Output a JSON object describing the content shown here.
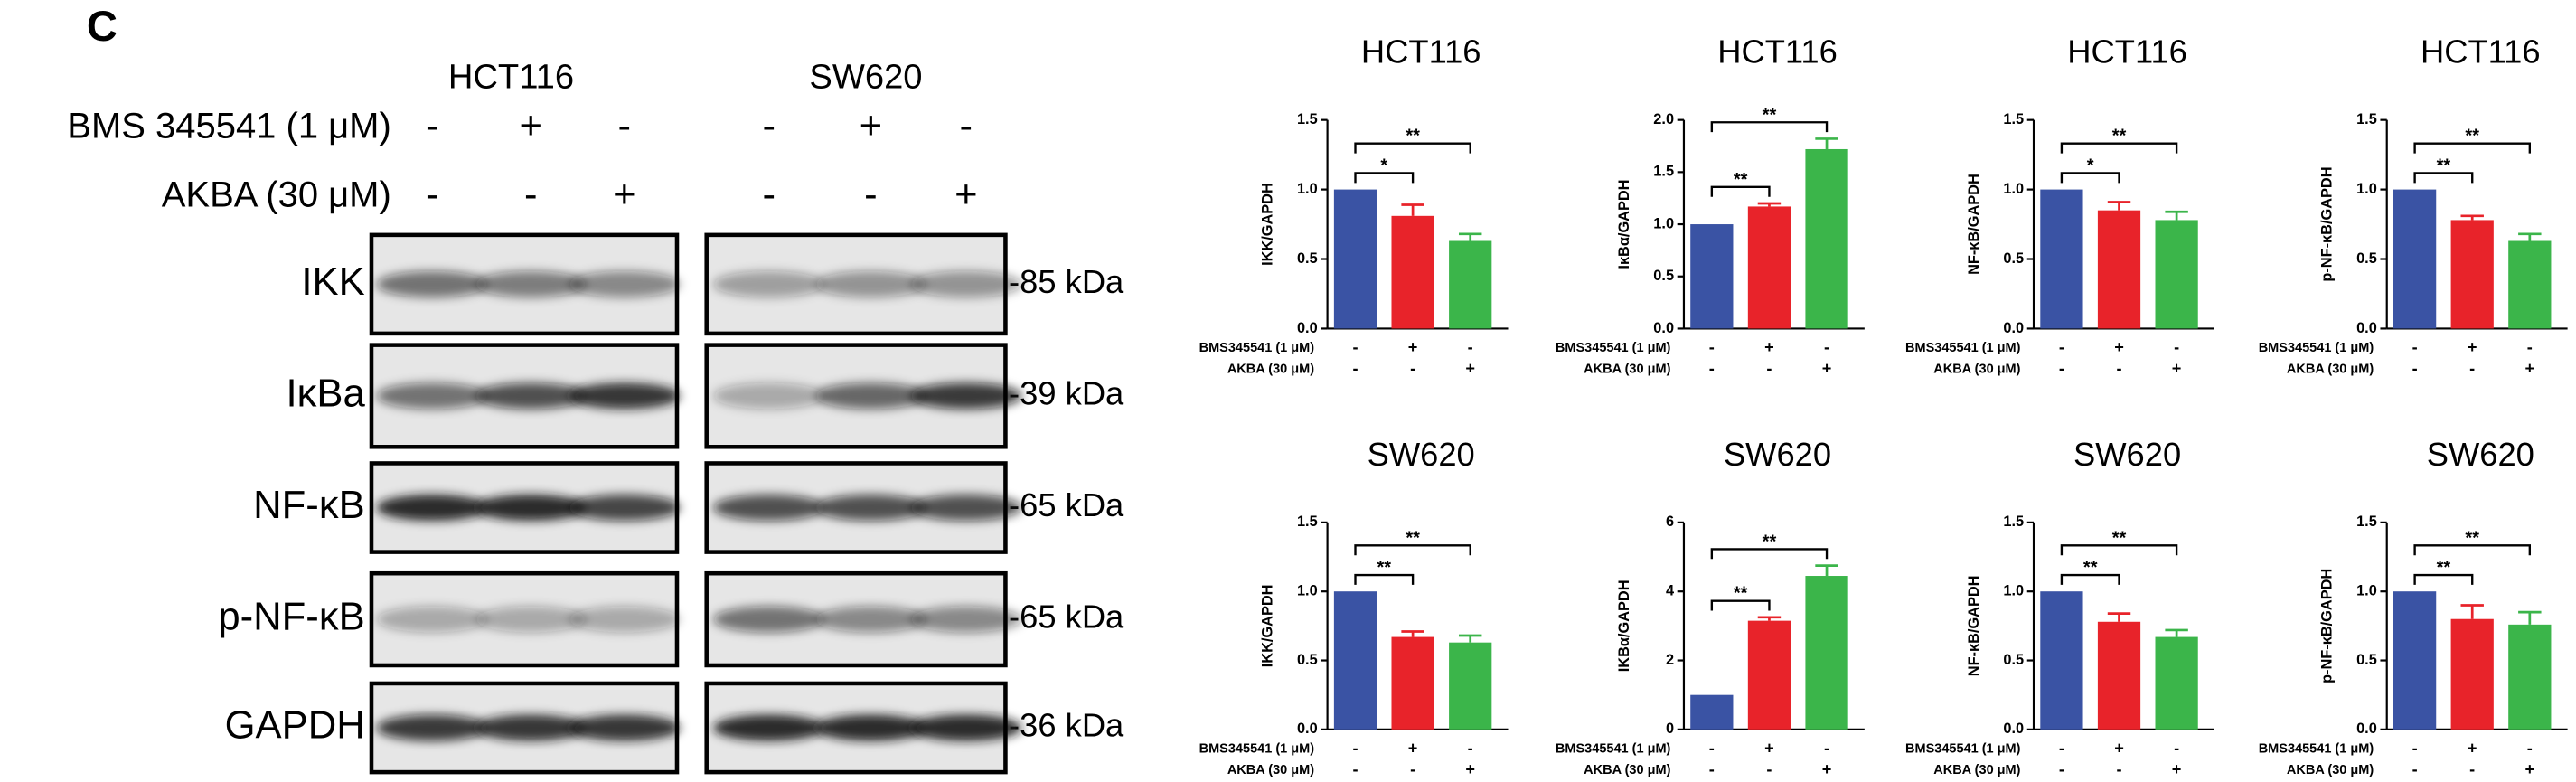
{
  "blot": {
    "panel_label": "C",
    "cell_lines": [
      "HCT116",
      "SW620"
    ],
    "treatments": [
      {
        "name": "BMS 345541 (1 μM)",
        "signs": [
          "-",
          "+",
          "-",
          "-",
          "+",
          "-"
        ]
      },
      {
        "name": "AKBA (30 μM)",
        "signs": [
          "-",
          "-",
          "+",
          "-",
          "-",
          "+"
        ]
      }
    ],
    "proteins": [
      {
        "name": "IKK",
        "size": "-85 kDa"
      },
      {
        "name": "IκBa",
        "size": "-39 kDa"
      },
      {
        "name": "NF-κB",
        "size": "-65 kDa"
      },
      {
        "name": "p-NF-κB",
        "size": "-65 kDa"
      },
      {
        "name": "GAPDH",
        "size": "-36 kDa"
      }
    ]
  },
  "chart_data": [
    {
      "type": "bar",
      "title": "HCT116",
      "ylabel": "IKK/GAPDH",
      "values": [
        1.0,
        0.81,
        0.63
      ],
      "errors": [
        0,
        0.08,
        0.05
      ],
      "colors": [
        "#3a53a4",
        "#e8232a",
        "#3bb54a"
      ],
      "significance": [
        "*",
        "**"
      ],
      "ylim": [
        0,
        1.5
      ],
      "yticks": [
        {
          "value": 0,
          "label": "0.0"
        },
        {
          "value": 0.5,
          "label": "0.5"
        },
        {
          "value": 1,
          "label": "1.0"
        },
        {
          "value": 1.5,
          "label": "1.5"
        }
      ],
      "treatments": [
        {
          "name": "BMS345541 (1 μM)",
          "signs": [
            "-",
            "+",
            "-"
          ]
        },
        {
          "name": "AKBA (30 μM)",
          "signs": [
            "-",
            "-",
            "+"
          ]
        }
      ]
    },
    {
      "type": "bar",
      "title": "HCT116",
      "ylabel": "IκBα/GAPDH",
      "values": [
        1.0,
        1.17,
        1.72
      ],
      "errors": [
        0,
        0.03,
        0.1
      ],
      "colors": [
        "#3a53a4",
        "#e8232a",
        "#3bb54a"
      ],
      "significance": [
        "**",
        "**"
      ],
      "ylim": [
        0,
        2
      ],
      "yticks": [
        {
          "value": 0,
          "label": "0.0"
        },
        {
          "value": 0.5,
          "label": "0.5"
        },
        {
          "value": 1,
          "label": "1.0"
        },
        {
          "value": 1.5,
          "label": "1.5"
        },
        {
          "value": 2,
          "label": "2.0"
        }
      ],
      "treatments": [
        {
          "name": "BMS345541 (1 μM)",
          "signs": [
            "-",
            "+",
            "-"
          ]
        },
        {
          "name": "AKBA (30 μM)",
          "signs": [
            "-",
            "-",
            "+"
          ]
        }
      ]
    },
    {
      "type": "bar",
      "title": "HCT116",
      "ylabel": "NF-κB/GAPDH",
      "values": [
        1.0,
        0.85,
        0.78
      ],
      "errors": [
        0,
        0.06,
        0.06
      ],
      "colors": [
        "#3a53a4",
        "#e8232a",
        "#3bb54a"
      ],
      "significance": [
        "*",
        "**"
      ],
      "ylim": [
        0,
        1.5
      ],
      "yticks": [
        {
          "value": 0,
          "label": "0.0"
        },
        {
          "value": 0.5,
          "label": "0.5"
        },
        {
          "value": 1,
          "label": "1.0"
        },
        {
          "value": 1.5,
          "label": "1.5"
        }
      ],
      "treatments": [
        {
          "name": "BMS345541 (1 μM)",
          "signs": [
            "-",
            "+",
            "-"
          ]
        },
        {
          "name": "AKBA (30 μM)",
          "signs": [
            "-",
            "-",
            "+"
          ]
        }
      ]
    },
    {
      "type": "bar",
      "title": "HCT116",
      "ylabel": "p-NF-κB/GAPDH",
      "values": [
        1.0,
        0.78,
        0.63
      ],
      "errors": [
        0,
        0.03,
        0.05
      ],
      "colors": [
        "#3a53a4",
        "#e8232a",
        "#3bb54a"
      ],
      "significance": [
        "**",
        "**"
      ],
      "ylim": [
        0,
        1.5
      ],
      "yticks": [
        {
          "value": 0,
          "label": "0.0"
        },
        {
          "value": 0.5,
          "label": "0.5"
        },
        {
          "value": 1,
          "label": "1.0"
        },
        {
          "value": 1.5,
          "label": "1.5"
        }
      ],
      "treatments": [
        {
          "name": "BMS345541 (1 μM)",
          "signs": [
            "-",
            "+",
            "-"
          ]
        },
        {
          "name": "AKBA (30 μM)",
          "signs": [
            "-",
            "-",
            "+"
          ]
        }
      ]
    },
    {
      "type": "bar",
      "title": "SW620",
      "ylabel": "IKK/GAPDH",
      "values": [
        1.0,
        0.67,
        0.63
      ],
      "errors": [
        0,
        0.04,
        0.05
      ],
      "colors": [
        "#3a53a4",
        "#e8232a",
        "#3bb54a"
      ],
      "significance": [
        "**",
        "**"
      ],
      "ylim": [
        0,
        1.5
      ],
      "yticks": [
        {
          "value": 0,
          "label": "0.0"
        },
        {
          "value": 0.5,
          "label": "0.5"
        },
        {
          "value": 1,
          "label": "1.0"
        },
        {
          "value": 1.5,
          "label": "1.5"
        }
      ],
      "treatments": [
        {
          "name": "BMS345541 (1 μM)",
          "signs": [
            "-",
            "+",
            "-"
          ]
        },
        {
          "name": "AKBA (30 μM)",
          "signs": [
            "-",
            "-",
            "+"
          ]
        }
      ]
    },
    {
      "type": "bar",
      "title": "SW620",
      "ylabel": "IKBα/GAPDH",
      "values": [
        1.0,
        3.15,
        4.45
      ],
      "errors": [
        0,
        0.1,
        0.3
      ],
      "colors": [
        "#3a53a4",
        "#e8232a",
        "#3bb54a"
      ],
      "significance": [
        "**",
        "**"
      ],
      "ylim": [
        0,
        6
      ],
      "yticks": [
        0,
        2,
        4,
        6
      ],
      "treatments": [
        {
          "name": "BMS345541 (1 μM)",
          "signs": [
            "-",
            "+",
            "-"
          ]
        },
        {
          "name": "AKBA (30 μM)",
          "signs": [
            "-",
            "-",
            "+"
          ]
        }
      ]
    },
    {
      "type": "bar",
      "title": "SW620",
      "ylabel": "NF-κB/GAPDH",
      "values": [
        1.0,
        0.78,
        0.67
      ],
      "errors": [
        0,
        0.06,
        0.05
      ],
      "colors": [
        "#3a53a4",
        "#e8232a",
        "#3bb54a"
      ],
      "significance": [
        "**",
        "**"
      ],
      "ylim": [
        0,
        1.5
      ],
      "yticks": [
        {
          "value": 0,
          "label": "0.0"
        },
        {
          "value": 0.5,
          "label": "0.5"
        },
        {
          "value": 1,
          "label": "1.0"
        },
        {
          "value": 1.5,
          "label": "1.5"
        }
      ],
      "treatments": [
        {
          "name": "BMS345541 (1 μM)",
          "signs": [
            "-",
            "+",
            "-"
          ]
        },
        {
          "name": "AKBA (30 μM)",
          "signs": [
            "-",
            "-",
            "+"
          ]
        }
      ]
    },
    {
      "type": "bar",
      "title": "SW620",
      "ylabel": "p-NF-κB/GAPDH",
      "values": [
        1.0,
        0.8,
        0.76
      ],
      "errors": [
        0,
        0.1,
        0.09
      ],
      "colors": [
        "#3a53a4",
        "#e8232a",
        "#3bb54a"
      ],
      "significance": [
        "**",
        "**"
      ],
      "ylim": [
        0,
        1.5
      ],
      "yticks": [
        {
          "value": 0,
          "label": "0.0"
        },
        {
          "value": 0.5,
          "label": "0.5"
        },
        {
          "value": 1,
          "label": "1.0"
        },
        {
          "value": 1.5,
          "label": "1.5"
        }
      ],
      "treatments": [
        {
          "name": "BMS345541 (1 μM)",
          "signs": [
            "-",
            "+",
            "-"
          ]
        },
        {
          "name": "AKBA (30 μM)",
          "signs": [
            "-",
            "-",
            "+"
          ]
        }
      ]
    }
  ]
}
